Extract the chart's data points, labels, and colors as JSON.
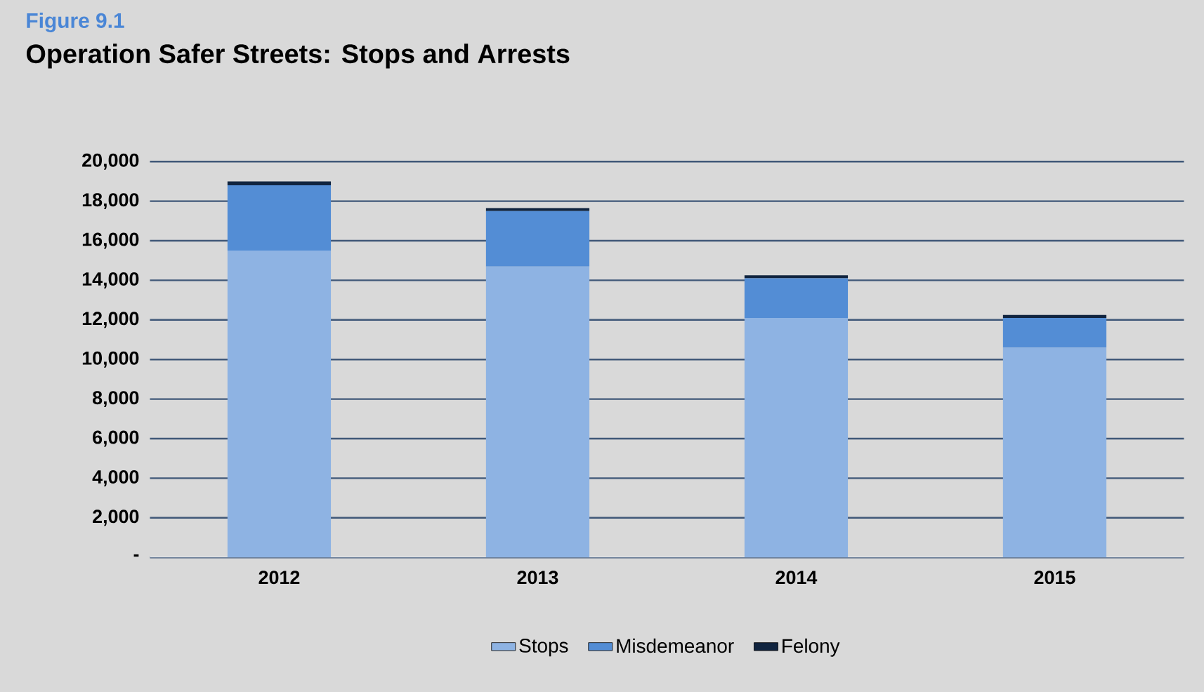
{
  "chart_data": {
    "type": "bar",
    "title": "Operation Safer Streets: Stops and Arrests",
    "annotations": [
      "Figure 9.1"
    ],
    "categories": [
      "2012",
      "2013",
      "2014",
      "2015"
    ],
    "stacked": true,
    "series": [
      {
        "name": "Stops",
        "color": "#8eb3e3",
        "values": [
          15500,
          14700,
          12100,
          10600
        ]
      },
      {
        "name": "Misdemeanor",
        "color": "#538dd5",
        "values": [
          3300,
          2800,
          2000,
          1500
        ]
      },
      {
        "name": "Felony",
        "color": "#10243f",
        "values": [
          200,
          150,
          150,
          150
        ]
      }
    ],
    "ylim": [
      0,
      20000
    ],
    "yticks": [
      {
        "value": 0,
        "label": "-"
      },
      {
        "value": 2000,
        "label": "2,000"
      },
      {
        "value": 4000,
        "label": "4,000"
      },
      {
        "value": 6000,
        "label": "6,000"
      },
      {
        "value": 8000,
        "label": "8,000"
      },
      {
        "value": 10000,
        "label": "10,000"
      },
      {
        "value": 12000,
        "label": "12,000"
      },
      {
        "value": 14000,
        "label": "14,000"
      },
      {
        "value": 16000,
        "label": "16,000"
      },
      {
        "value": 18000,
        "label": "18,000"
      },
      {
        "value": 20000,
        "label": "20,000"
      }
    ],
    "grid": "y",
    "legend": "bottom"
  }
}
